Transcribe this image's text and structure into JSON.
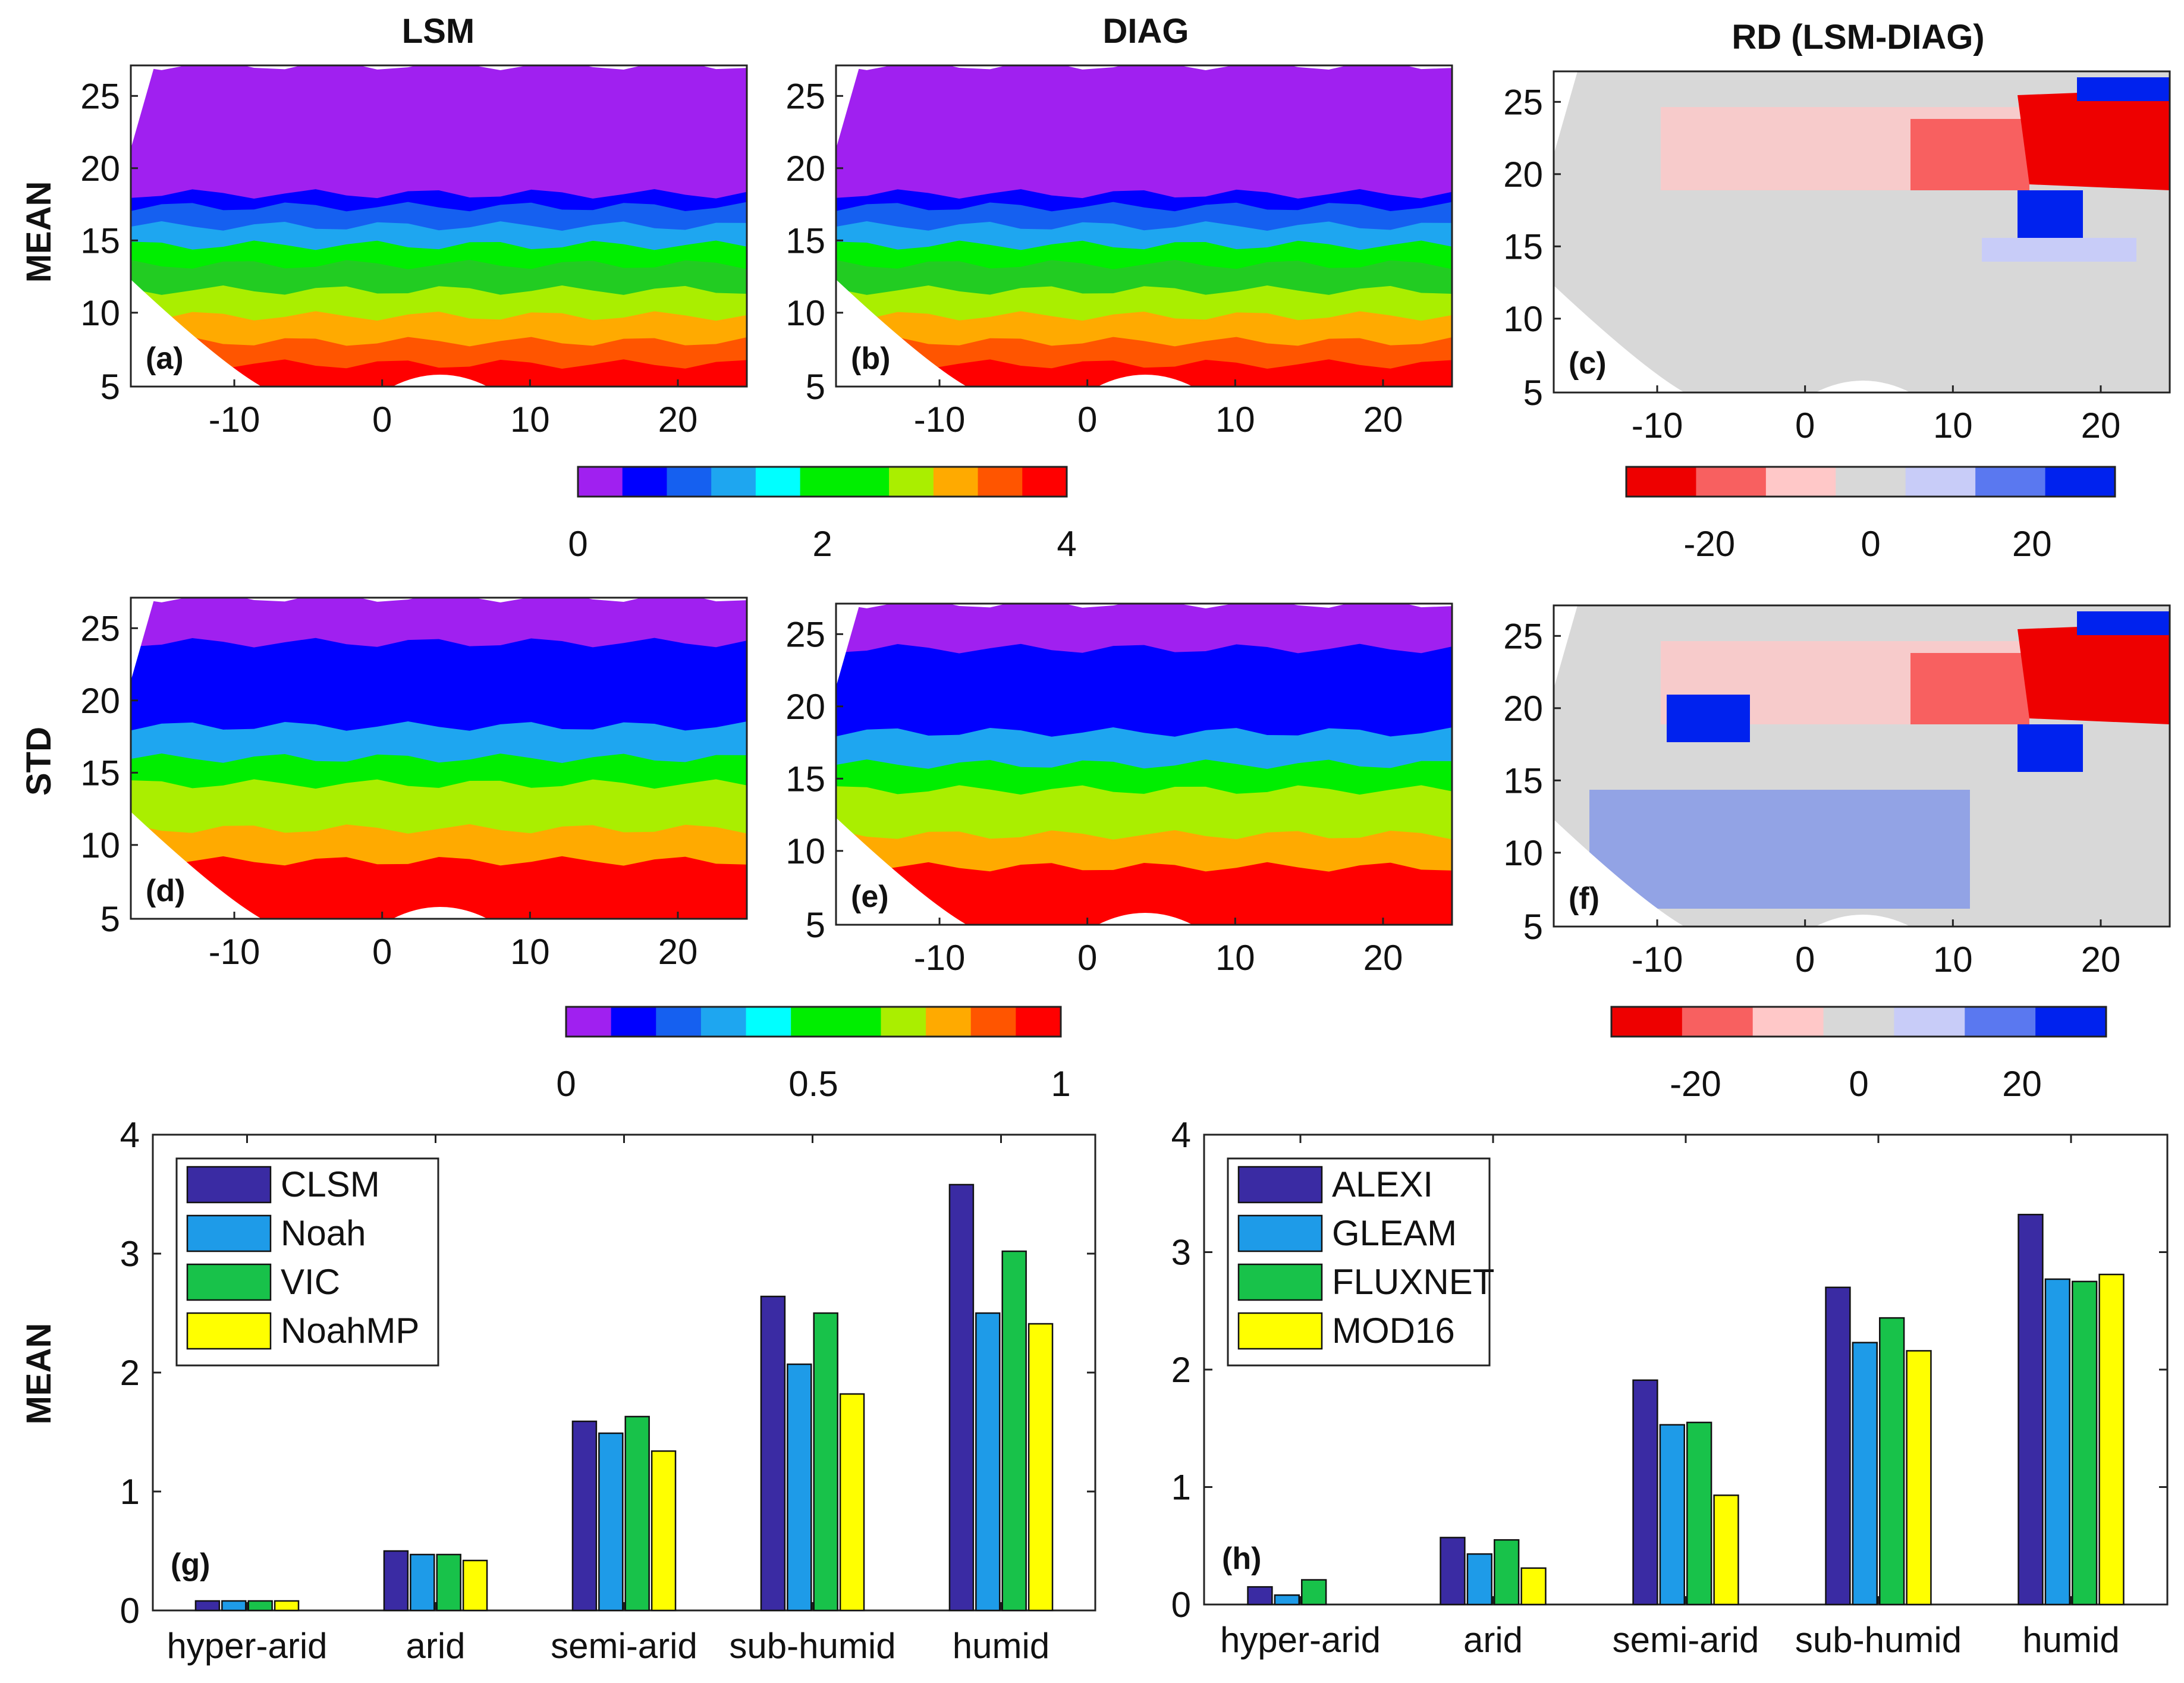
{
  "columns": {
    "lsm": "LSM",
    "diag": "DIAG",
    "rd": "RD (LSM-DIAG)"
  },
  "rows": {
    "mean": "MEAN",
    "std": "STD"
  },
  "colors": {
    "seq": [
      "#a020f0",
      "#0000ff",
      "#1560f0",
      "#1ea6f0",
      "#00ffff",
      "#00ee00",
      "#22cc22",
      "#aaee00",
      "#ffaa00",
      "#ff5500",
      "#ff0000"
    ],
    "div": [
      "#ee0000",
      "#f86060",
      "#ffc8c8",
      "#d8d8d8",
      "#c8ccf8",
      "#5a78f0",
      "#0022ee"
    ],
    "bars_lsm": [
      "#3a2ba3",
      "#1e9be8",
      "#18c24a",
      "#ffff00"
    ],
    "bars_obs": [
      "#3a2ba3",
      "#1e9be8",
      "#18c24a",
      "#ffff00"
    ]
  },
  "maps": {
    "xticks": [
      "-10",
      "0",
      "10",
      "20"
    ],
    "yticks": [
      "5",
      "10",
      "15",
      "20",
      "25"
    ],
    "panels": [
      {
        "id": "map-a",
        "label": "(a)"
      },
      {
        "id": "map-b",
        "label": "(b)"
      },
      {
        "id": "map-c",
        "label": "(c)"
      },
      {
        "id": "map-d",
        "label": "(d)"
      },
      {
        "id": "map-e",
        "label": "(e)"
      },
      {
        "id": "map-f",
        "label": "(f)"
      }
    ]
  },
  "colorbars": {
    "mean_seq": [
      "0",
      "2",
      "4"
    ],
    "mean_div": [
      "-20",
      "0",
      "20"
    ],
    "std_seq": [
      "0",
      "0.5",
      "1"
    ],
    "std_div": [
      "-20",
      "0",
      "20"
    ]
  },
  "chart_data": [
    {
      "type": "bar",
      "panel": "(g)",
      "ylabel": "MEAN",
      "categories": [
        "hyper-arid",
        "arid",
        "semi-arid",
        "sub-humid",
        "humid"
      ],
      "ylim": [
        0,
        4
      ],
      "yticks": [
        "0",
        "1",
        "2",
        "3",
        "4"
      ],
      "legend_position": "top-left",
      "series": [
        {
          "name": "CLSM",
          "values": [
            0.08,
            0.5,
            1.59,
            2.64,
            3.58
          ]
        },
        {
          "name": "Noah",
          "values": [
            0.08,
            0.47,
            1.49,
            2.07,
            2.5
          ]
        },
        {
          "name": "VIC",
          "values": [
            0.08,
            0.47,
            1.63,
            2.5,
            3.02
          ]
        },
        {
          "name": "NoahMP",
          "values": [
            0.08,
            0.42,
            1.34,
            1.82,
            2.41
          ]
        }
      ]
    },
    {
      "type": "bar",
      "panel": "(h)",
      "ylabel": "",
      "categories": [
        "hyper-arid",
        "arid",
        "semi-arid",
        "sub-humid",
        "humid"
      ],
      "ylim": [
        0,
        4
      ],
      "yticks": [
        "0",
        "1",
        "2",
        "3",
        "4"
      ],
      "legend_position": "top-left",
      "series": [
        {
          "name": "ALEXI",
          "values": [
            0.15,
            0.57,
            1.91,
            2.7,
            3.32
          ]
        },
        {
          "name": "GLEAM",
          "values": [
            0.08,
            0.43,
            1.53,
            2.23,
            2.77
          ]
        },
        {
          "name": "FLUXNET",
          "values": [
            0.21,
            0.55,
            1.55,
            2.44,
            2.75
          ]
        },
        {
          "name": "MOD16",
          "values": [
            0,
            0.31,
            0.93,
            2.16,
            2.81
          ]
        }
      ]
    }
  ]
}
